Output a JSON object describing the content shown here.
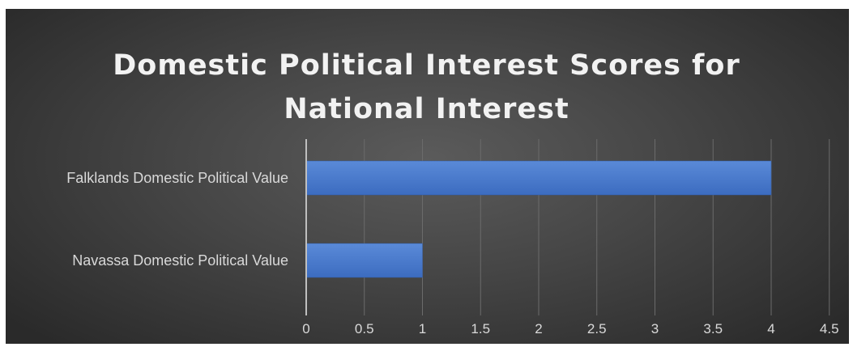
{
  "chart_data": {
    "type": "bar",
    "orientation": "horizontal",
    "title_lines": [
      "Domestic Political Interest Scores for",
      "National Interest"
    ],
    "categories": [
      "Falklands Domestic Political Value",
      "Navassa Domestic Political Value"
    ],
    "values": [
      4,
      1
    ],
    "xlim": [
      0,
      4.5
    ],
    "xticks": [
      "0",
      "0.5",
      "1",
      "1.5",
      "2",
      "2.5",
      "3",
      "3.5",
      "4",
      "4.5"
    ],
    "xlabel": "",
    "ylabel": "",
    "grid": true,
    "legend": "none"
  },
  "colors": {
    "background": "#444444",
    "bar_top": "#5a8ad8",
    "bar_bottom": "#3c6cc0",
    "text": "#d9d9d9",
    "title": "#f2f2f2",
    "gridline": "#6b6b6b",
    "axis": "#bfbfbf"
  }
}
